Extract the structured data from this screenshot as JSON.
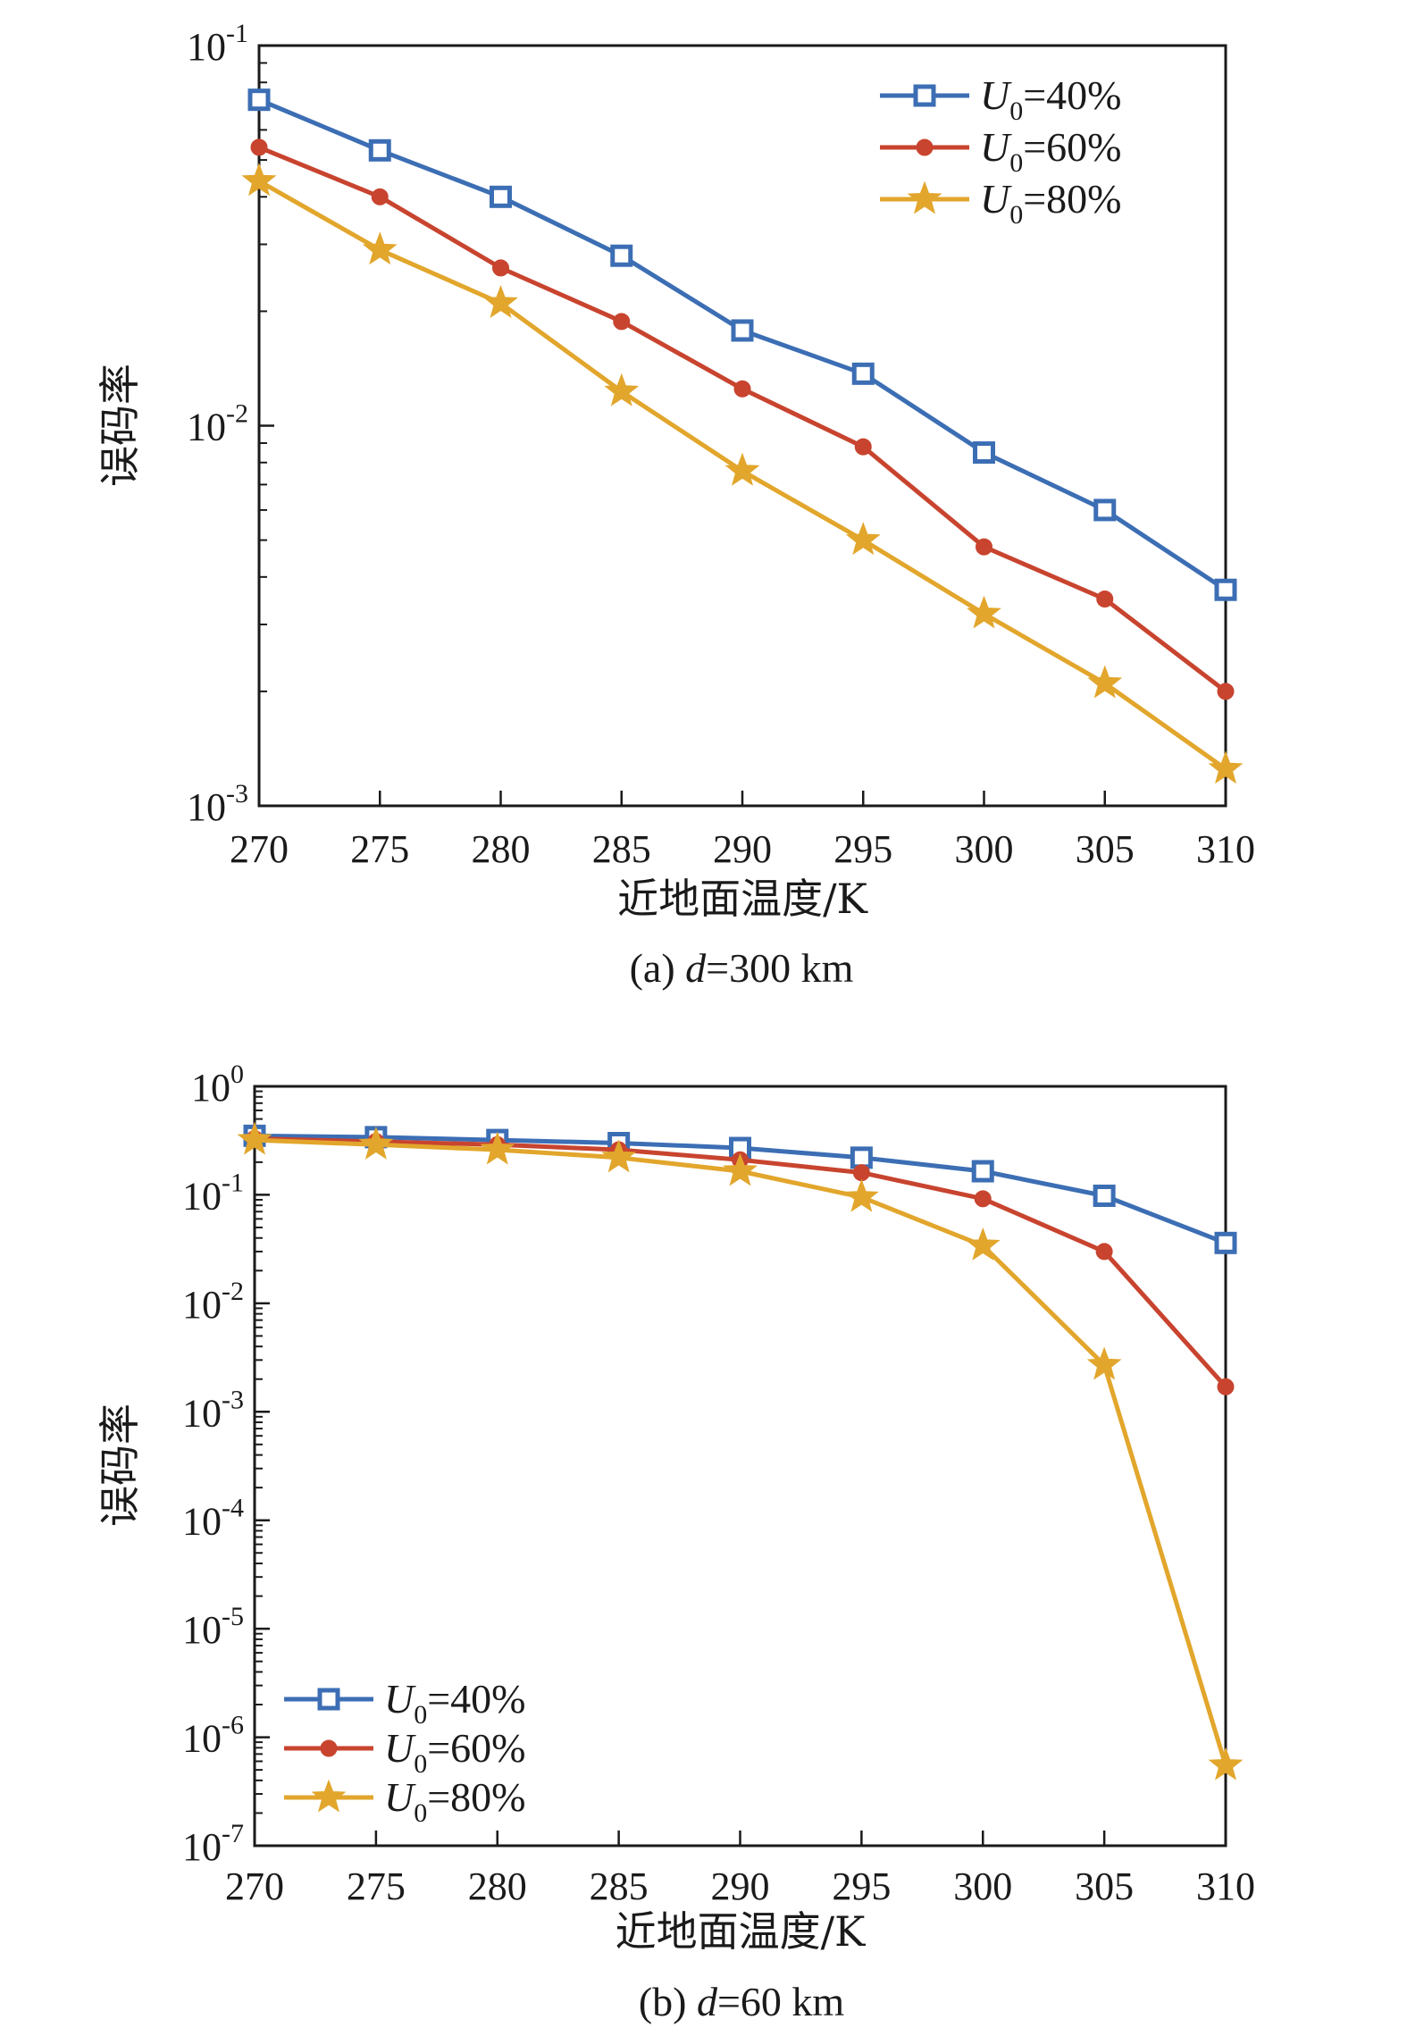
{
  "colors": {
    "s40": "#3c6eb4",
    "s60": "#c8442f",
    "s80": "#e2a62c"
  },
  "chart_data": [
    {
      "type": "line",
      "caption": {
        "pre": "(a) ",
        "var": "d",
        "post": "=300 km"
      },
      "xlabel": "近地面温度/K",
      "ylabel": "误码率",
      "yscale": "log",
      "xlim": [
        270,
        310
      ],
      "ylim_exp": [
        -3,
        -1
      ],
      "x_ticks": [
        "270",
        "275",
        "280",
        "285",
        "290",
        "295",
        "300",
        "305",
        "310"
      ],
      "y_ticks": [
        {
          "exp": "-1"
        },
        {
          "exp": "-2"
        },
        {
          "exp": "-3"
        }
      ],
      "legend_position": "top-right",
      "x": [
        270,
        275,
        280,
        285,
        290,
        295,
        300,
        305,
        310
      ],
      "series": [
        {
          "name": {
            "var": "U",
            "sub": "0",
            "rest": "=40%"
          },
          "marker": "square",
          "color": "s40",
          "values": [
            0.072,
            0.053,
            0.04,
            0.028,
            0.0178,
            0.0137,
            0.0085,
            0.006,
            0.0037
          ]
        },
        {
          "name": {
            "var": "U",
            "sub": "0",
            "rest": "=60%"
          },
          "marker": "circle",
          "color": "s60",
          "values": [
            0.054,
            0.04,
            0.026,
            0.0188,
            0.0125,
            0.0088,
            0.0048,
            0.0035,
            0.002
          ]
        },
        {
          "name": {
            "var": "U",
            "sub": "0",
            "rest": "=80%"
          },
          "marker": "star",
          "color": "s80",
          "values": [
            0.044,
            0.029,
            0.021,
            0.0123,
            0.0076,
            0.005,
            0.0032,
            0.0021,
            0.00125
          ]
        }
      ]
    },
    {
      "type": "line",
      "caption": {
        "pre": "(b) ",
        "var": "d",
        "post": "=60 km"
      },
      "xlabel": "近地面温度/K",
      "ylabel": "误码率",
      "yscale": "log",
      "xlim": [
        270,
        310
      ],
      "ylim_exp": [
        -7,
        0
      ],
      "x_ticks": [
        "270",
        "275",
        "280",
        "285",
        "290",
        "295",
        "300",
        "305",
        "310"
      ],
      "y_ticks": [
        {
          "exp": "0"
        },
        {
          "exp": "-1"
        },
        {
          "exp": "-2"
        },
        {
          "exp": "-3"
        },
        {
          "exp": "-4"
        },
        {
          "exp": "-5"
        },
        {
          "exp": "-6"
        },
        {
          "exp": "-7"
        }
      ],
      "legend_position": "bottom-left",
      "x": [
        270,
        275,
        280,
        285,
        290,
        295,
        300,
        305,
        310
      ],
      "series": [
        {
          "name": {
            "var": "U",
            "sub": "0",
            "rest": "=40%"
          },
          "marker": "square",
          "color": "s40",
          "values": [
            0.35,
            0.34,
            0.32,
            0.3,
            0.27,
            0.22,
            0.165,
            0.098,
            0.036
          ]
        },
        {
          "name": {
            "var": "U",
            "sub": "0",
            "rest": "=60%"
          },
          "marker": "circle",
          "color": "s60",
          "values": [
            0.33,
            0.31,
            0.29,
            0.26,
            0.21,
            0.16,
            0.092,
            0.03,
            0.0017
          ]
        },
        {
          "name": {
            "var": "U",
            "sub": "0",
            "rest": "=80%"
          },
          "marker": "star",
          "color": "s80",
          "values": [
            0.32,
            0.29,
            0.26,
            0.22,
            0.165,
            0.095,
            0.034,
            0.0027,
            5.5e-07
          ]
        }
      ]
    }
  ]
}
